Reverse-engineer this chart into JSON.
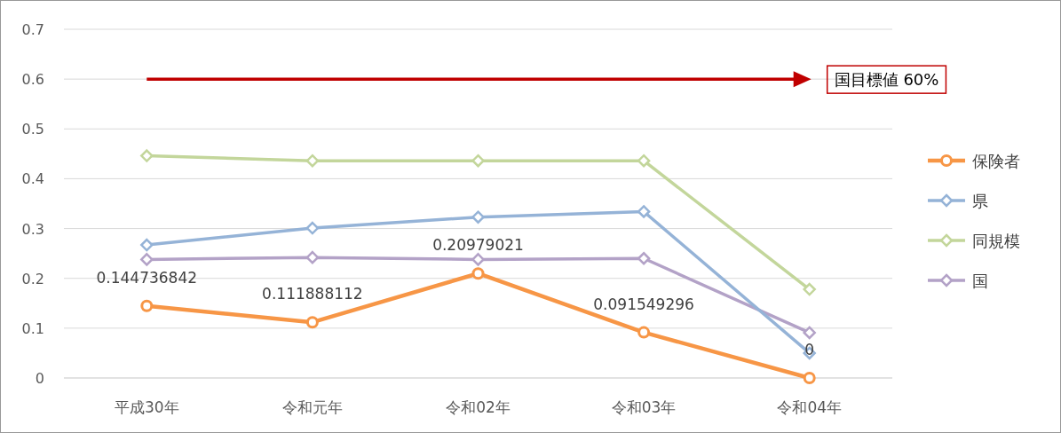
{
  "chart_data": {
    "type": "line",
    "categories": [
      "平成30年",
      "令和元年",
      "令和02年",
      "令和03年",
      "令和04年"
    ],
    "series": [
      {
        "name": "保険者",
        "color": "#f79646",
        "marker": "circle",
        "values": [
          0.144736842,
          0.111888112,
          0.20979021,
          0.091549296,
          0
        ],
        "data_labels": true
      },
      {
        "name": "県",
        "color": "#95b3d7",
        "marker": "diamond",
        "values": [
          0.267,
          0.301,
          0.323,
          0.334,
          0.05
        ]
      },
      {
        "name": "同規模",
        "color": "#c3d69b",
        "marker": "diamond",
        "values": [
          0.446,
          0.436,
          0.436,
          0.436,
          0.178
        ]
      },
      {
        "name": "国",
        "color": "#b3a2c7",
        "marker": "diamond",
        "values": [
          0.238,
          0.242,
          0.238,
          0.24,
          0.091
        ]
      }
    ],
    "ylim": [
      0,
      0.7
    ],
    "yticks": [
      0,
      0.1,
      0.2,
      0.3,
      0.4,
      0.5,
      0.6,
      0.7
    ],
    "grid": "y",
    "legend": "right",
    "ref_lines": [
      {
        "axis": "y",
        "value": 0.6,
        "label": "国目標値 60%",
        "color": "#c00000"
      }
    ]
  }
}
